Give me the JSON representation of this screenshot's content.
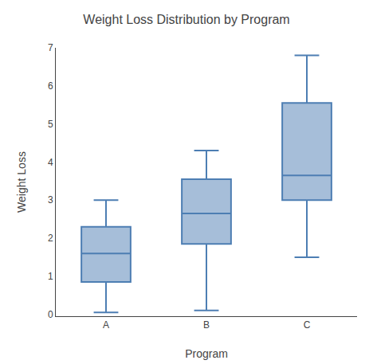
{
  "chart_data": {
    "type": "box",
    "title": "Weight Loss Distribution by Program",
    "xlabel": "Program",
    "ylabel": "Weight Loss",
    "categories": [
      "A",
      "B",
      "C"
    ],
    "stats": [
      {
        "whislo": 0.05,
        "q1": 0.85,
        "med": 1.6,
        "q3": 2.3,
        "whishi": 3.0
      },
      {
        "whislo": 0.1,
        "q1": 1.85,
        "med": 2.65,
        "q3": 3.55,
        "whishi": 4.3
      },
      {
        "whislo": 1.5,
        "q1": 3.0,
        "med": 3.65,
        "q3": 5.55,
        "whishi": 6.8
      }
    ],
    "color": "#4d7eb3",
    "ylim": [
      -0.05,
      7.0
    ],
    "yticks": [
      0,
      1,
      2,
      3,
      4,
      5,
      6,
      7
    ],
    "grid": false
  }
}
